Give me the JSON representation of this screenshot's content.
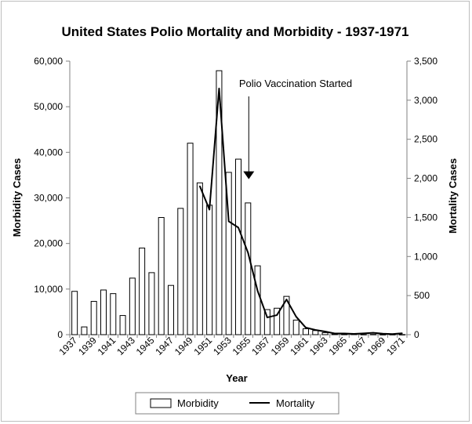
{
  "chart_data": {
    "type": "bar",
    "title": "United States Polio Mortality and Morbidity - 1937-1971",
    "xlabel": "Year",
    "ylabel": "Morbidity Cases",
    "y2label": "Mortality Cases",
    "ylim": [
      0,
      60000
    ],
    "y2lim": [
      0,
      3500
    ],
    "yticks": [
      "0",
      "10,000",
      "20,000",
      "30,000",
      "40,000",
      "50,000",
      "60,000"
    ],
    "y2ticks": [
      "0",
      "500",
      "1,000",
      "1,500",
      "2,000",
      "2,500",
      "3,000",
      "3,500"
    ],
    "ytick_values": [
      0,
      10000,
      20000,
      30000,
      40000,
      50000,
      60000
    ],
    "y2tick_values": [
      0,
      500,
      1000,
      1500,
      2000,
      2500,
      3000,
      3500
    ],
    "categories": [
      "1937",
      "1938",
      "1939",
      "1940",
      "1941",
      "1942",
      "1943",
      "1944",
      "1945",
      "1946",
      "1947",
      "1948",
      "1949",
      "1950",
      "1951",
      "1952",
      "1953",
      "1954",
      "1955",
      "1956",
      "1957",
      "1958",
      "1959",
      "1960",
      "1961",
      "1962",
      "1963",
      "1964",
      "1965",
      "1966",
      "1967",
      "1968",
      "1969",
      "1970",
      "1971"
    ],
    "xtick_labels": [
      "1937",
      "1939",
      "1941",
      "1943",
      "1945",
      "1947",
      "1949",
      "1951",
      "1953",
      "1955",
      "1957",
      "1959",
      "1961",
      "1963",
      "1965",
      "1967",
      "1969",
      "1971"
    ],
    "series": [
      {
        "name": "Morbidity",
        "kind": "bar",
        "axis": "left",
        "values": [
          9500,
          1700,
          7300,
          9800,
          9000,
          4200,
          12400,
          19000,
          13600,
          25700,
          10800,
          27700,
          42000,
          33300,
          28400,
          57900,
          35600,
          38500,
          28900,
          15100,
          5500,
          5800,
          8400,
          3200,
          1300,
          900,
          450,
          120,
          70,
          110,
          40,
          55,
          20,
          30,
          20
        ]
      },
      {
        "name": "Mortality",
        "kind": "line",
        "axis": "right",
        "values": [
          null,
          null,
          null,
          null,
          null,
          null,
          null,
          null,
          null,
          null,
          null,
          null,
          null,
          1900,
          1600,
          3150,
          1450,
          1370,
          1050,
          560,
          220,
          250,
          450,
          230,
          90,
          60,
          40,
          15,
          15,
          10,
          16,
          24,
          13,
          7,
          18
        ]
      }
    ],
    "annotations": [
      {
        "text": "Polio Vaccination Started",
        "year": "1955",
        "value": 2000
      }
    ],
    "legend": {
      "position": "bottom",
      "entries": [
        "Morbidity",
        "Mortality"
      ]
    },
    "grid": false
  }
}
